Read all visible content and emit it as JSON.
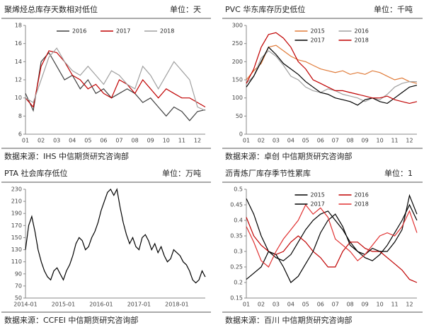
{
  "chart_data": [
    {
      "type": "line",
      "title": "聚烯烃总库存天数相对低位",
      "unit": "单位：天",
      "source": "数据来源：IHS  中信期货研究咨询部",
      "categories": [
        "01",
        null,
        "02",
        null,
        "03",
        null,
        "04",
        null,
        "05",
        null,
        "06",
        null,
        "07",
        null,
        "08",
        null,
        "09",
        null,
        "10",
        null,
        "11",
        null,
        "12",
        null
      ],
      "ylim": [
        6,
        18
      ],
      "yticks": [
        6,
        8,
        10,
        12,
        14,
        16,
        18
      ],
      "legend_columns": 3,
      "series": [
        {
          "name": "2016",
          "color": "#404040",
          "values": [
            10.5,
            8.6,
            14,
            15,
            13.5,
            12,
            12.5,
            11,
            12,
            10.5,
            11,
            10,
            10.5,
            11,
            10.5,
            9.5,
            10,
            9,
            8,
            9,
            8.5,
            7.5,
            8.5,
            8.7
          ]
        },
        {
          "name": "2017",
          "color": "#c00000",
          "values": [
            10,
            9,
            13.5,
            15.2,
            15,
            14,
            12.5,
            12,
            11,
            11.5,
            10.5,
            10,
            12,
            11.5,
            10.5,
            12,
            11,
            10,
            11,
            10.5,
            10,
            10,
            9.5,
            9
          ]
        },
        {
          "name": "2018",
          "color": "#a0a0a0",
          "values": [
            10,
            9.5,
            12,
            14.5,
            15.5,
            14,
            13,
            12.5,
            13.5,
            12.5,
            11.5,
            13,
            12.5,
            11.5,
            11,
            13.5,
            12.5,
            11,
            12.5,
            14,
            13,
            12,
            9,
            8.6
          ]
        }
      ]
    },
    {
      "type": "line",
      "title": "PVC 华东库存历史低位",
      "unit": "单位：千吨",
      "source": "数据来源：卓创  中信期货研究咨询部",
      "categories": [
        "01",
        null,
        "02",
        null,
        "03",
        null,
        "04",
        null,
        "05",
        null,
        "06",
        null,
        "07",
        null,
        "08",
        null,
        "09",
        null,
        "10",
        null,
        "11",
        null,
        "12",
        null
      ],
      "ylim": [
        0,
        300
      ],
      "yticks": [
        0,
        50,
        100,
        150,
        200,
        250,
        300
      ],
      "legend_columns": 2,
      "series": [
        {
          "name": "2015",
          "color": "#e07b39",
          "values": [
            150,
            175,
            195,
            240,
            245,
            230,
            215,
            205,
            200,
            190,
            180,
            175,
            170,
            175,
            165,
            170,
            165,
            175,
            170,
            160,
            150,
            155,
            145,
            140
          ]
        },
        {
          "name": "2016",
          "color": "#a0a0a0",
          "values": [
            140,
            160,
            210,
            230,
            215,
            190,
            160,
            150,
            130,
            120,
            115,
            125,
            120,
            110,
            105,
            100,
            90,
            100,
            95,
            110,
            130,
            140,
            145,
            145
          ]
        },
        {
          "name": "2017",
          "color": "#000000",
          "values": [
            130,
            160,
            200,
            240,
            220,
            195,
            180,
            165,
            145,
            130,
            115,
            110,
            100,
            95,
            90,
            80,
            95,
            100,
            90,
            85,
            100,
            115,
            130,
            135
          ]
        },
        {
          "name": "2018",
          "color": "#c00000",
          "values": [
            140,
            180,
            240,
            275,
            280,
            265,
            240,
            200,
            180,
            150,
            140,
            130,
            120,
            120,
            115,
            110,
            105,
            100,
            100,
            105,
            95,
            90,
            85,
            90
          ]
        }
      ]
    },
    {
      "type": "line",
      "title": "PTA 社会库存低位",
      "unit": "单位：万吨",
      "source": "数据来源：CCFEI  中信期货研究咨询部",
      "categories": [
        "2014-01",
        null,
        null,
        null,
        null,
        null,
        null,
        null,
        null,
        null,
        null,
        null,
        "2015-01",
        null,
        null,
        null,
        null,
        null,
        null,
        null,
        null,
        null,
        null,
        null,
        "2016-01",
        null,
        null,
        null,
        null,
        null,
        null,
        null,
        null,
        null,
        null,
        null,
        "2017-01",
        null,
        null,
        null,
        null,
        null,
        null,
        null,
        null,
        null,
        null,
        null,
        "2018-01",
        null,
        null,
        null,
        null,
        null,
        null,
        null,
        null,
        null
      ],
      "ylim": [
        50,
        230
      ],
      "yticks": [
        50,
        70,
        90,
        110,
        130,
        150,
        170,
        190,
        210,
        230
      ],
      "series": [
        {
          "color": "#000000",
          "values": [
            130,
            170,
            185,
            160,
            130,
            110,
            95,
            85,
            80,
            95,
            100,
            90,
            80,
            95,
            105,
            120,
            140,
            150,
            145,
            130,
            135,
            150,
            160,
            175,
            195,
            210,
            225,
            230,
            220,
            230,
            200,
            175,
            155,
            140,
            150,
            135,
            130,
            150,
            155,
            145,
            130,
            140,
            125,
            135,
            120,
            110,
            115,
            130,
            125,
            120,
            110,
            105,
            95,
            80,
            75,
            80,
            95,
            85
          ]
        }
      ]
    },
    {
      "type": "line",
      "title": "沥青炼厂库存季节性累库",
      "unit": "单位：1",
      "source": "数据来源：百川  中信期货研究咨询部",
      "categories": [
        "01",
        null,
        "02",
        null,
        "03",
        null,
        "04",
        null,
        "05",
        null,
        "06",
        null,
        "07",
        null,
        "08",
        null,
        "09",
        null,
        "10",
        null,
        "11",
        null,
        "12",
        null
      ],
      "ylim": [
        0.15,
        0.5
      ],
      "yticks": [
        0.15,
        0.2,
        0.25,
        0.3,
        0.35,
        0.4,
        0.45,
        0.5
      ],
      "legend_columns": 2,
      "series": [
        {
          "name": "2015",
          "color": "#000000",
          "values": [
            0.47,
            0.42,
            0.35,
            0.3,
            0.28,
            0.27,
            0.29,
            0.33,
            0.37,
            0.4,
            0.42,
            0.43,
            0.4,
            0.37,
            0.33,
            0.3,
            0.28,
            0.27,
            0.29,
            0.32,
            0.36,
            0.4,
            0.45,
            0.4
          ]
        },
        {
          "name": "2016",
          "color": "#c00000",
          "values": [
            0.41,
            0.35,
            0.32,
            0.3,
            0.29,
            0.3,
            0.33,
            0.35,
            0.33,
            0.3,
            0.28,
            0.25,
            0.25,
            0.3,
            0.33,
            0.33,
            0.31,
            0.3,
            0.3,
            0.28,
            0.26,
            0.24,
            0.21,
            0.2
          ]
        },
        {
          "name": "2017",
          "color": "#000000",
          "values": [
            0.21,
            0.23,
            0.25,
            0.3,
            0.29,
            0.25,
            0.2,
            0.22,
            0.26,
            0.3,
            0.36,
            0.4,
            0.42,
            0.38,
            0.32,
            0.3,
            0.29,
            0.31,
            0.3,
            0.3,
            0.33,
            0.37,
            0.48,
            0.42
          ]
        },
        {
          "name": "2018",
          "color": "#e03030",
          "values": [
            0.38,
            0.33,
            0.27,
            0.25,
            0.3,
            0.34,
            0.37,
            0.4,
            0.45,
            0.42,
            0.44,
            0.41,
            0.34,
            0.32,
            0.3,
            0.27,
            0.29,
            0.32,
            0.35,
            0.36,
            0.35,
            0.38,
            0.43,
            0.36
          ]
        }
      ]
    }
  ]
}
